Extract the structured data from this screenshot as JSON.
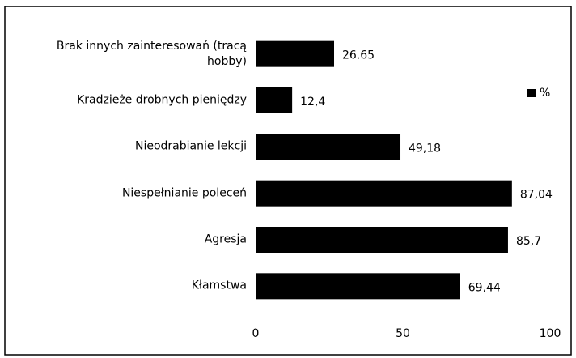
{
  "chart_data": {
    "type": "bar",
    "orientation": "horizontal",
    "categories": [
      "Brak innych zainteresowań (tracą hobby)",
      "Kradzieże drobnych pieniędzy",
      "Nieodrabianie lekcji",
      "Niespełnianie poleceń",
      "Agresja",
      "Kłamstwa"
    ],
    "series": [
      {
        "name": "%",
        "color": "#000000",
        "values": [
          26.65,
          12.4,
          49.18,
          87.04,
          85.7,
          69.44
        ],
        "value_labels": [
          "26.65",
          "12,4",
          "49,18",
          "87,04",
          "85,7",
          "69,44"
        ]
      }
    ],
    "xlim": [
      0,
      100
    ],
    "xticks": [
      0,
      50,
      100
    ],
    "grid": false,
    "legend": "right"
  }
}
